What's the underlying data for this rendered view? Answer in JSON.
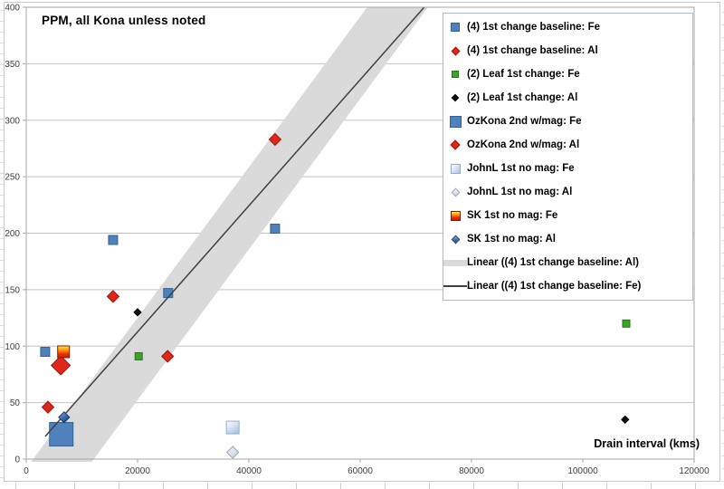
{
  "chart_data": {
    "type": "scatter",
    "title": "PPM, all Kona unless noted",
    "x_axis": {
      "title": "Drain interval (kms)",
      "min": 0,
      "max": 120000,
      "tick_step": 20000,
      "tick_labels": [
        "0",
        "20000",
        "40000",
        "60000",
        "80000",
        "100000",
        "120000"
      ]
    },
    "y_axis": {
      "title": "",
      "min": 0,
      "max": 400,
      "tick_step": 50,
      "tick_labels": [
        "0",
        "50",
        "100",
        "150",
        "200",
        "250",
        "300",
        "350",
        "400"
      ]
    },
    "grid": "horizontal",
    "legend_position": "inside-top-right",
    "series": [
      {
        "name": "(4) 1st change baseline: Fe",
        "marker": "square",
        "size": 10,
        "fill": "#4F81BD",
        "border": "#36618F",
        "points": [
          [
            3400,
            95
          ],
          [
            15600,
            194
          ],
          [
            25500,
            147
          ],
          [
            44700,
            204
          ]
        ]
      },
      {
        "name": "(4) 1st change baseline: Al",
        "marker": "diamond",
        "size": 13,
        "fill": "#E0251B",
        "border": "#9E1508",
        "points": [
          [
            3900,
            46
          ],
          [
            15600,
            144
          ],
          [
            25400,
            91
          ],
          [
            44700,
            283
          ]
        ]
      },
      {
        "name": "(2) Leaf 1st change: Fe",
        "marker": "square",
        "size": 8,
        "fill": "#3BA426",
        "border": "#27761A",
        "points": [
          [
            20200,
            91
          ],
          [
            107800,
            120
          ]
        ]
      },
      {
        "name": "(2) Leaf 1st change: Al",
        "marker": "diamond",
        "size": 8,
        "fill": "#111111",
        "border": "#000000",
        "points": [
          [
            20000,
            130
          ],
          [
            107600,
            35
          ]
        ]
      },
      {
        "name": "OzKona 2nd w/mag: Fe",
        "marker": "square",
        "size": 26,
        "fill": "#4F81BD",
        "border": "#36618F",
        "points": [
          [
            6300,
            22
          ]
        ]
      },
      {
        "name": "OzKona 2nd w/mag: Al",
        "marker": "diamond",
        "size": 21,
        "fill": "#E0251B",
        "border": "#9E1508",
        "points": [
          [
            6200,
            83
          ]
        ]
      },
      {
        "name": "JohnL 1st no mag: Fe",
        "marker": "square",
        "size": 14,
        "fill": "grad-lightblue",
        "border": "#97ABCB",
        "points": [
          [
            37100,
            28
          ]
        ]
      },
      {
        "name": "JohnL 1st no mag: Al",
        "marker": "diamond",
        "size": 13,
        "fill": "grad-lighter",
        "border": "#9FA5AE",
        "points": [
          [
            37100,
            6
          ]
        ]
      },
      {
        "name": "SK 1st no mag: Fe",
        "marker": "square",
        "size": 13,
        "fill": "grad-fire",
        "border": "#7F2200",
        "points": [
          [
            6700,
            95
          ]
        ]
      },
      {
        "name": "SK 1st no mag: Al",
        "marker": "diamond",
        "size": 12,
        "fill": "grad-blue",
        "border": "#1C3C6E",
        "points": [
          [
            6800,
            37
          ]
        ]
      }
    ],
    "trendlines": [
      {
        "name": "Linear ((4) 1st change baseline: Al)",
        "style": "band",
        "color": "#DADADA",
        "stroke_width": 54,
        "from": [
          3680,
          -20
        ],
        "to": [
          68500,
          412
        ]
      },
      {
        "name": "Linear ((4) 1st change baseline: Fe)",
        "style": "line",
        "color": "#3F3F3F",
        "stroke_width": 1.5,
        "from": [
          3400,
          20
        ],
        "to": [
          71500,
          400
        ]
      }
    ]
  },
  "legend": {
    "items": [
      {
        "label": "(4) 1st change baseline: Fe",
        "marker": "square",
        "size": 10,
        "fill": "#4F81BD",
        "border": "#36618F"
      },
      {
        "label": "(4) 1st change baseline: Al",
        "marker": "diamond",
        "size": 9,
        "fill": "#E0251B",
        "border": "#9E1508"
      },
      {
        "label": "(2) Leaf 1st change: Fe",
        "marker": "square",
        "size": 8,
        "fill": "#3BA426",
        "border": "#27761A"
      },
      {
        "label": "(2) Leaf 1st change: Al",
        "marker": "diamond",
        "size": 7,
        "fill": "#111111",
        "border": "#000000"
      },
      {
        "label": "OzKona 2nd w/mag: Fe",
        "marker": "square",
        "size": 13,
        "fill": "#4F81BD",
        "border": "#36618F"
      },
      {
        "label": "OzKona 2nd w/mag: Al",
        "marker": "diamond",
        "size": 10,
        "fill": "#E0251B",
        "border": "#9E1508"
      },
      {
        "label": "JohnL 1st no mag: Fe",
        "marker": "square",
        "size": 11,
        "fill": "grad-lightblue",
        "border": "#97ABCB"
      },
      {
        "label": "JohnL 1st no mag: Al",
        "marker": "diamond",
        "size": 9,
        "fill": "grad-lighter",
        "border": "#9FA5AE"
      },
      {
        "label": "SK 1st no mag: Fe",
        "marker": "square",
        "size": 11,
        "fill": "grad-fire",
        "border": "#7F2200"
      },
      {
        "label": "SK 1st no mag: Al",
        "marker": "diamond",
        "size": 9,
        "fill": "grad-blue",
        "border": "#1C3C6E"
      },
      {
        "label": "Linear ((4) 1st change baseline: Al)",
        "marker": "band",
        "color": "#DADADA"
      },
      {
        "label": "Linear ((4) 1st change baseline: Fe)",
        "marker": "line",
        "color": "#3F3F3F"
      }
    ]
  }
}
